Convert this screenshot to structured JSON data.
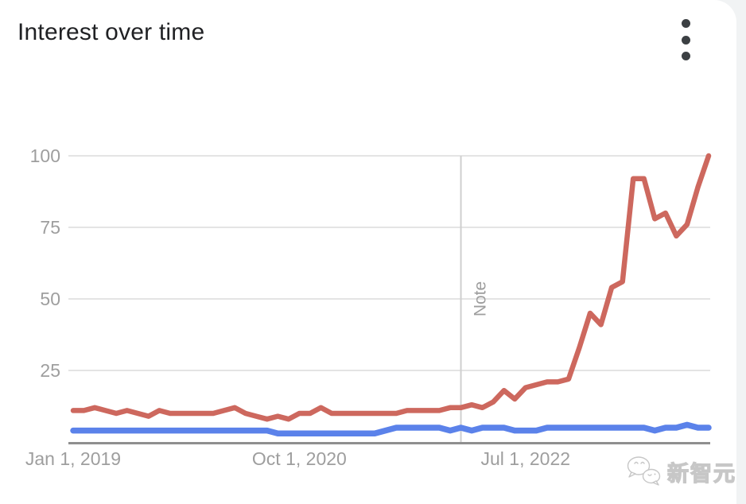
{
  "header": {
    "title": "Interest over time"
  },
  "watermark": {
    "text": "新智元"
  },
  "colors": {
    "title": "#202124",
    "axis_labels": "#9e9e9e",
    "gridline": "#e4e4e4",
    "axis_line": "#8f8f8f",
    "note_line": "#cfcfcf",
    "note_text": "#9e9e9e",
    "menu_icon": "#3c4043",
    "page_edge": "#f1f3f4",
    "series_red": "#cd685e",
    "series_blue": "#5b82ea"
  },
  "chart_data": {
    "type": "line",
    "title": "Interest over time",
    "xlabel": "",
    "ylabel": "",
    "ylim": [
      0,
      100
    ],
    "grid": "horizontal",
    "legend": "none",
    "y_ticks": [
      25,
      50,
      75,
      100
    ],
    "x_tick_labels": [
      "Jan 1, 2019",
      "Oct 1, 2020",
      "Jul 1, 2022"
    ],
    "x_tick_indices": [
      0,
      21,
      42
    ],
    "n_points": 60,
    "x_start_label": "Jan 1, 2019",
    "x_interval": "monthly (estimated from weekly trace)",
    "annotation": {
      "label": "Note",
      "index": 36
    },
    "series": [
      {
        "name": "red",
        "color": "#cd685e",
        "values": [
          11,
          11,
          12,
          11,
          10,
          11,
          10,
          9,
          11,
          10,
          10,
          10,
          10,
          10,
          11,
          12,
          10,
          9,
          8,
          9,
          8,
          10,
          10,
          12,
          10,
          10,
          10,
          10,
          10,
          10,
          10,
          11,
          11,
          11,
          11,
          12,
          12,
          13,
          12,
          14,
          18,
          15,
          19,
          20,
          21,
          21,
          22,
          33,
          45,
          41,
          54,
          56,
          92,
          92,
          78,
          80,
          72,
          76,
          89,
          100
        ]
      },
      {
        "name": "blue",
        "color": "#5b82ea",
        "values": [
          4,
          4,
          4,
          4,
          4,
          4,
          4,
          4,
          4,
          4,
          4,
          4,
          4,
          4,
          4,
          4,
          4,
          4,
          4,
          3,
          3,
          3,
          3,
          3,
          3,
          3,
          3,
          3,
          3,
          4,
          5,
          5,
          5,
          5,
          5,
          4,
          5,
          4,
          5,
          5,
          5,
          4,
          4,
          4,
          5,
          5,
          5,
          5,
          5,
          5,
          5,
          5,
          5,
          5,
          4,
          5,
          5,
          6,
          5,
          5
        ]
      }
    ]
  }
}
